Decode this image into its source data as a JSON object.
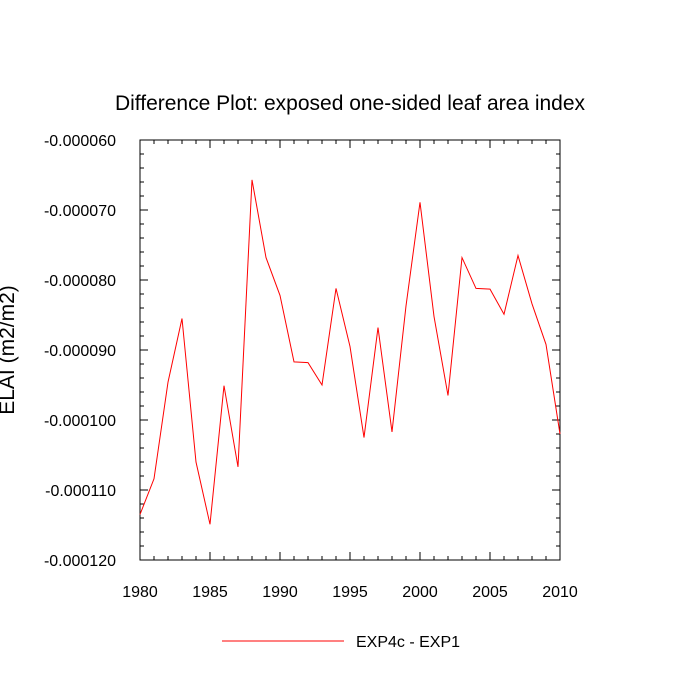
{
  "chart_data": {
    "type": "line",
    "title": "Difference Plot: exposed one-sided leaf area index",
    "xlabel": "",
    "ylabel": "ELAI (m2/m2)",
    "xlim": [
      1980,
      2010
    ],
    "ylim": [
      -0.00012,
      -6e-05
    ],
    "x_ticks": [
      1980,
      1985,
      1990,
      1995,
      2000,
      2005,
      2010
    ],
    "x_tick_labels": [
      "1980",
      "1985",
      "1990",
      "1995",
      "2000",
      "2005",
      "2010"
    ],
    "y_ticks": [
      -6e-05,
      -7e-05,
      -8e-05,
      -9e-05,
      -0.0001,
      -0.00011,
      -0.00012
    ],
    "y_tick_labels": [
      "-0.000060",
      "-0.000070",
      "-0.000080",
      "-0.000090",
      "-0.000100",
      "-0.000110",
      "-0.000120"
    ],
    "legend_position": "bottom",
    "grid": false,
    "series": [
      {
        "name": "EXP4c - EXP1",
        "color": "#ff0000",
        "x": [
          1980,
          1981,
          1982,
          1983,
          1984,
          1985,
          1986,
          1987,
          1988,
          1989,
          1990,
          1991,
          1992,
          1993,
          1994,
          1995,
          1996,
          1997,
          1998,
          1999,
          2000,
          2001,
          2002,
          2003,
          2004,
          2005,
          2006,
          2007,
          2008,
          2009,
          2010
        ],
        "values": [
          -0.0001135,
          -0.0001084,
          -9.46e-05,
          -8.55e-05,
          -0.000106,
          -0.0001149,
          -9.51e-05,
          -0.0001067,
          -6.57e-05,
          -7.68e-05,
          -8.22e-05,
          -9.17e-05,
          -9.18e-05,
          -9.5e-05,
          -8.12e-05,
          -8.95e-05,
          -0.0001025,
          -8.68e-05,
          -0.0001017,
          -8.37e-05,
          -6.89e-05,
          -8.52e-05,
          -9.65e-05,
          -7.68e-05,
          -8.12e-05,
          -8.13e-05,
          -8.49e-05,
          -7.65e-05,
          -8.34e-05,
          -8.92e-05,
          -0.000102
        ]
      }
    ]
  }
}
